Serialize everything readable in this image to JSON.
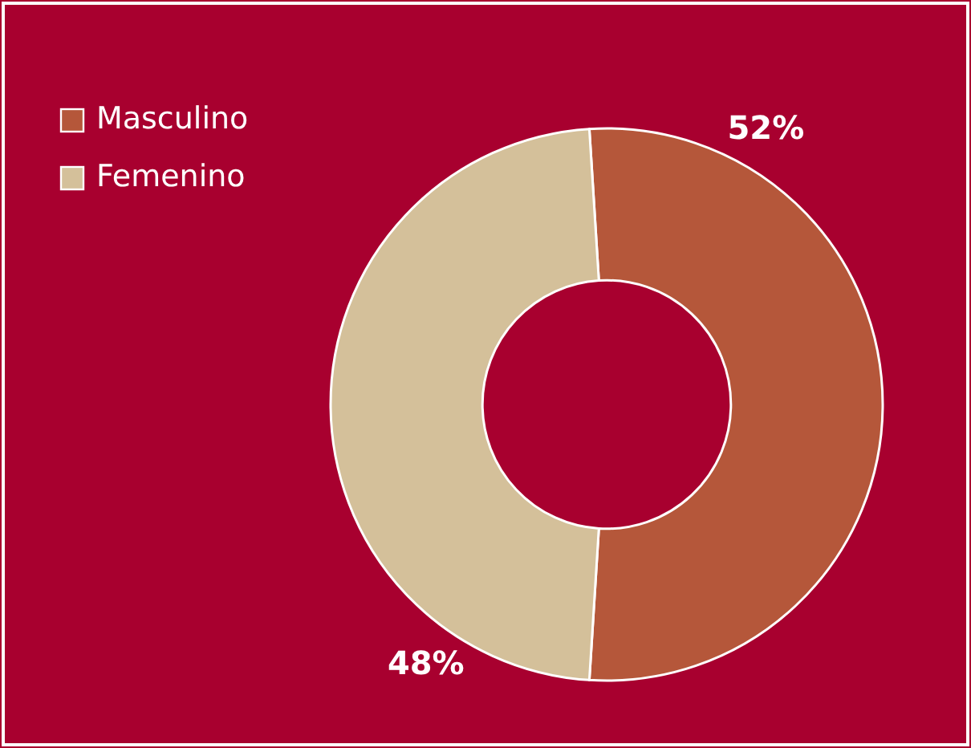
{
  "chart_data": {
    "type": "donut",
    "categories": [
      "Masculino",
      "Femenino"
    ],
    "values": [
      52,
      48
    ],
    "value_labels": [
      "52%",
      "48%"
    ],
    "colors": [
      "#b5573a",
      "#d4c09a"
    ],
    "legend": "top left"
  }
}
